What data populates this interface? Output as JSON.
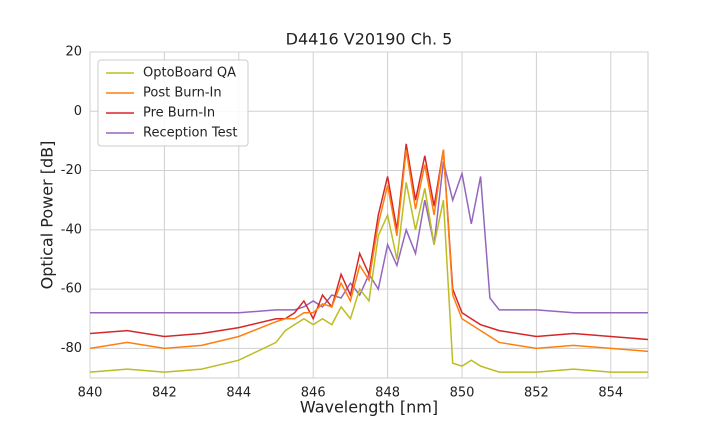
{
  "chart_data": {
    "type": "line",
    "title": "D4416 V20190 Ch. 5",
    "x_label": "Wavelength [nm]",
    "y_label": "Optical Power [dB]",
    "x": [
      840,
      841,
      842,
      843,
      844,
      845,
      845.25,
      845.5,
      845.75,
      846,
      846.25,
      846.5,
      846.75,
      847,
      847.25,
      847.5,
      847.75,
      848,
      848.25,
      848.5,
      848.75,
      849,
      849.25,
      849.5,
      849.75,
      850,
      850.25,
      850.5,
      850.75,
      851,
      852,
      853,
      854,
      855
    ],
    "series": [
      {
        "name": "OptoBoard QA",
        "color": "#bcbd22",
        "values": [
          -88,
          -87,
          -88,
          -87,
          -84,
          -78,
          -74,
          -72,
          -70,
          -72,
          -70,
          -72,
          -66,
          -70,
          -60,
          -64,
          -42,
          -35,
          -50,
          -24,
          -40,
          -26,
          -45,
          -30,
          -85,
          -86,
          -84,
          -86,
          -87,
          -88,
          -88,
          -87,
          -88,
          -88
        ]
      },
      {
        "name": "Post Burn-In",
        "color": "#ff7f0e",
        "values": [
          -80,
          -78,
          -80,
          -79,
          -76,
          -71,
          -70,
          -70,
          -68,
          -68,
          -65,
          -66,
          -58,
          -64,
          -52,
          -57,
          -38,
          -25,
          -42,
          -13,
          -33,
          -18,
          -35,
          -13,
          -62,
          -70,
          -72,
          -74,
          -76,
          -78,
          -80,
          -79,
          -80,
          -81
        ]
      },
      {
        "name": "Pre Burn-In",
        "color": "#d62728",
        "values": [
          -75,
          -74,
          -76,
          -75,
          -73,
          -70,
          -70,
          -68,
          -64,
          -70,
          -62,
          -66,
          -55,
          -62,
          -48,
          -55,
          -35,
          -22,
          -40,
          -11,
          -30,
          -15,
          -32,
          -13,
          -60,
          -68,
          -70,
          -72,
          -73,
          -74,
          -76,
          -75,
          -76,
          -77
        ]
      },
      {
        "name": "Reception Test",
        "color": "#9467bd",
        "values": [
          -68,
          -68,
          -68,
          -68,
          -68,
          -67,
          -67,
          -67,
          -66,
          -64,
          -66,
          -62,
          -63,
          -58,
          -62,
          -55,
          -60,
          -45,
          -52,
          -40,
          -48,
          -30,
          -45,
          -17,
          -30,
          -21,
          -38,
          -22,
          -63,
          -67,
          -67,
          -68,
          -68,
          -68
        ]
      }
    ],
    "xlim": [
      840,
      855
    ],
    "xticks": [
      840,
      842,
      844,
      846,
      848,
      850,
      852,
      854
    ],
    "ylim": [
      -90,
      20
    ],
    "yticks": [
      -80,
      -60,
      -40,
      -20,
      0,
      20
    ],
    "grid": true,
    "legend": "upper left"
  }
}
